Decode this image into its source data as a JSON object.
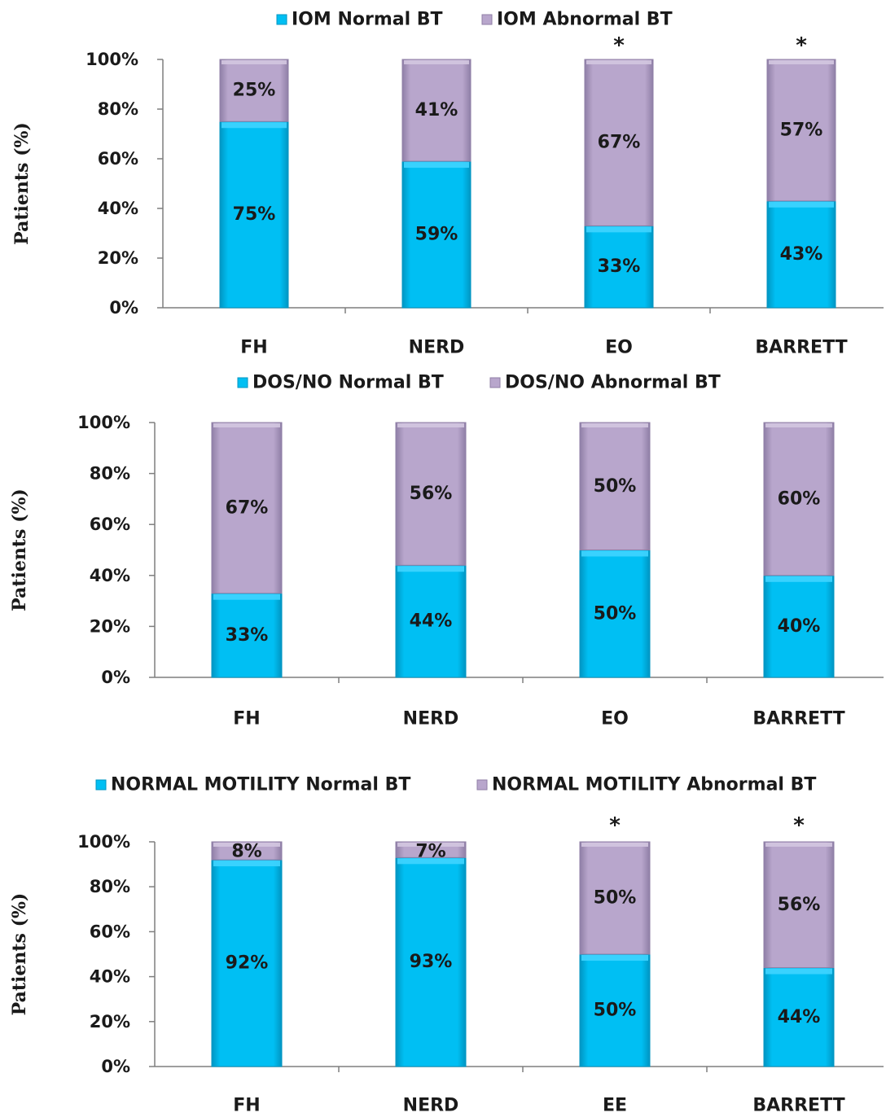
{
  "colors": {
    "normal_bt": "#00bff3",
    "normal_bt_dark": "#0095c2",
    "abnormal_bt": "#b8a6cc",
    "abnormal_bt_dark": "#8f7fa6",
    "axis": "#7f7f7f"
  },
  "chart_data": [
    {
      "type": "bar",
      "stacked": true,
      "percent": true,
      "categories": [
        "FH",
        "NERD",
        "EO",
        "BARRETT"
      ],
      "series": [
        {
          "name": "IOM Normal BT",
          "values": [
            75,
            59,
            33,
            43
          ],
          "labels": [
            "75%",
            "59%",
            "33%",
            "43%"
          ]
        },
        {
          "name": "IOM Abnormal BT",
          "values": [
            25,
            41,
            67,
            57
          ],
          "labels": [
            "25%",
            "41%",
            "67%",
            "57%"
          ]
        }
      ],
      "significance": [
        "",
        "",
        "*",
        "*"
      ],
      "ylabel": "Patients (%)",
      "yticks": [
        "0%",
        "20%",
        "40%",
        "60%",
        "80%",
        "100%"
      ],
      "ylim": [
        0,
        100
      ],
      "legend_position": "top"
    },
    {
      "type": "bar",
      "stacked": true,
      "percent": true,
      "categories": [
        "FH",
        "NERD",
        "EO",
        "BARRETT"
      ],
      "series": [
        {
          "name": "DOS/NO Normal BT",
          "values": [
            33,
            44,
            50,
            40
          ],
          "labels": [
            "33%",
            "44%",
            "50%",
            "40%"
          ]
        },
        {
          "name": "DOS/NO Abnormal BT",
          "values": [
            67,
            56,
            50,
            60
          ],
          "labels": [
            "67%",
            "56%",
            "50%",
            "60%"
          ]
        }
      ],
      "significance": [
        "",
        "",
        "",
        ""
      ],
      "ylabel": "Patients (%)",
      "yticks": [
        "0%",
        "20%",
        "40%",
        "60%",
        "80%",
        "100%"
      ],
      "ylim": [
        0,
        100
      ],
      "legend_position": "top"
    },
    {
      "type": "bar",
      "stacked": true,
      "percent": true,
      "categories": [
        "FH",
        "NERD",
        "EE",
        "BARRETT"
      ],
      "series": [
        {
          "name": "NORMAL MOTILITY Normal BT",
          "values": [
            92,
            93,
            50,
            44
          ],
          "labels": [
            "92%",
            "93%",
            "50%",
            "44%"
          ]
        },
        {
          "name": "NORMAL MOTILITY Abnormal BT",
          "values": [
            8,
            7,
            50,
            56
          ],
          "labels": [
            "8%",
            "7%",
            "50%",
            "56%"
          ]
        }
      ],
      "significance": [
        "",
        "",
        "*",
        "*"
      ],
      "ylabel": "Patients (%)",
      "yticks": [
        "0%",
        "20%",
        "40%",
        "60%",
        "80%",
        "100%"
      ],
      "ylim": [
        0,
        100
      ],
      "legend_position": "top"
    }
  ]
}
